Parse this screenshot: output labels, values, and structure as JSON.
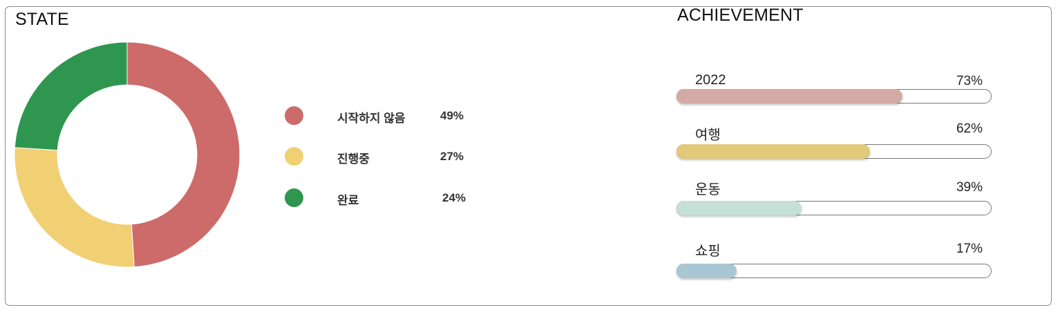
{
  "state": {
    "title": "STATE"
  },
  "achievement": {
    "title": "ACHIEVEMENT"
  },
  "chart_data": [
    {
      "type": "pie",
      "title": "STATE",
      "donut": true,
      "categories": [
        "시작하지 않음",
        "진행중",
        "완료"
      ],
      "values": [
        49,
        27,
        24
      ],
      "value_labels": [
        "49%",
        "27%",
        "24%"
      ],
      "colors": [
        "#cd6b6a",
        "#f1cf73",
        "#2f9650"
      ],
      "legend": "right"
    },
    {
      "type": "bar",
      "orientation": "horizontal",
      "title": "ACHIEVEMENT",
      "categories": [
        "2022",
        "여행",
        "운동",
        "쇼핑"
      ],
      "values": [
        73,
        62,
        39,
        17
      ],
      "value_labels": [
        "73%",
        "62%",
        "39%",
        "17%"
      ],
      "colors": [
        "#d3aaa6",
        "#e2c978",
        "#c5e0d6",
        "#a8c7d3"
      ],
      "xlim": [
        0,
        100
      ]
    }
  ]
}
